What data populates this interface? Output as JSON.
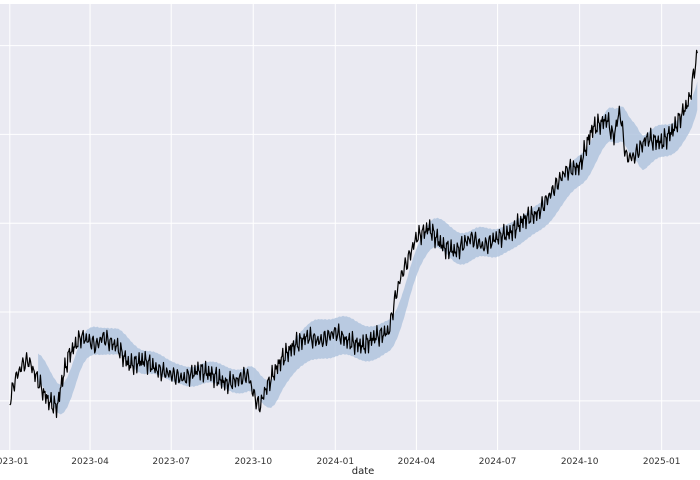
{
  "chart_data": {
    "type": "line",
    "title": "",
    "xlabel": "date",
    "ylabel": "",
    "grid": true,
    "legend": "none",
    "colors": {
      "background": "#eaeaf2",
      "grid": "#ffffff",
      "line": "#000000",
      "band": "#b0c4de"
    },
    "xlim": [
      "2022-12-21",
      "2025-02-13"
    ],
    "ylim": [
      0,
      472
    ],
    "y_gridlines": [
      52,
      146,
      240,
      334,
      428
    ],
    "x_ticks": [
      "2023-01",
      "2023-04",
      "2023-07",
      "2023-10",
      "2024-01",
      "2024-04",
      "2024-07",
      "2024-10",
      "2025-01"
    ],
    "x_tick_dates": [
      "2023-01-01",
      "2023-04-01",
      "2023-07-01",
      "2023-10-01",
      "2024-01-01",
      "2024-04-01",
      "2024-07-01",
      "2024-10-01",
      "2025-01-01"
    ],
    "band_start": "2023-02-01",
    "band_width": [
      30,
      32,
      28,
      25,
      20,
      22,
      26,
      30,
      42,
      40,
      34,
      28,
      34,
      30,
      28,
      30,
      34,
      38,
      34,
      30
    ],
    "series": [
      {
        "x": [
          "2023-01-01",
          "2023-01-07",
          "2023-01-15",
          "2023-01-22",
          "2023-02-01",
          "2023-02-08",
          "2023-02-15",
          "2023-02-23",
          "2023-03-01",
          "2023-03-08",
          "2023-03-15",
          "2023-03-22",
          "2023-04-01",
          "2023-04-08",
          "2023-04-15",
          "2023-04-22",
          "2023-05-01",
          "2023-05-15",
          "2023-06-01",
          "2023-06-15",
          "2023-07-01",
          "2023-07-15",
          "2023-08-01",
          "2023-08-15",
          "2023-09-01",
          "2023-09-15",
          "2023-09-25",
          "2023-10-01",
          "2023-10-08",
          "2023-10-15",
          "2023-11-01",
          "2023-11-15",
          "2023-12-01",
          "2023-12-15",
          "2024-01-01",
          "2024-01-15",
          "2024-02-01",
          "2024-02-15",
          "2024-03-01",
          "2024-03-08",
          "2024-03-15",
          "2024-03-22",
          "2024-04-01",
          "2024-04-15",
          "2024-05-01",
          "2024-05-15",
          "2024-06-01",
          "2024-06-15",
          "2024-07-01",
          "2024-07-15",
          "2024-08-01",
          "2024-08-15",
          "2024-09-01",
          "2024-09-15",
          "2024-10-01",
          "2024-10-15",
          "2024-11-01",
          "2024-11-08",
          "2024-11-15",
          "2024-11-22",
          "2024-12-01",
          "2024-12-15",
          "2025-01-01",
          "2025-01-15",
          "2025-02-01",
          "2025-02-10"
        ],
        "y": [
          52,
          75,
          90,
          95,
          75,
          60,
          50,
          45,
          75,
          100,
          110,
          120,
          115,
          110,
          120,
          115,
          110,
          90,
          95,
          85,
          80,
          75,
          85,
          80,
          70,
          75,
          80,
          60,
          45,
          65,
          95,
          110,
          120,
          115,
          125,
          115,
          110,
          120,
          125,
          160,
          185,
          200,
          225,
          235,
          215,
          210,
          225,
          215,
          225,
          230,
          245,
          250,
          275,
          295,
          300,
          340,
          350,
          330,
          360,
          310,
          310,
          330,
          325,
          340,
          370,
          420
        ]
      }
    ]
  }
}
